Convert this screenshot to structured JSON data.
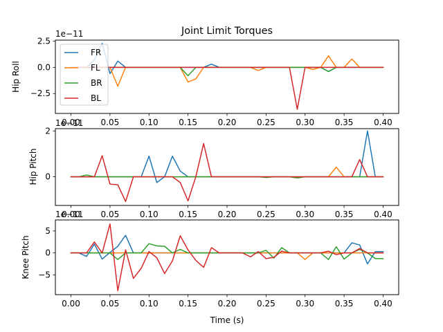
{
  "chart_data": {
    "type": "line",
    "title": "Joint Limit Torques",
    "xlabel": "Time (s)",
    "xlim": [
      -0.02,
      0.42
    ],
    "xticks": [
      "0.00",
      "0.05",
      "0.10",
      "0.15",
      "0.20",
      "0.25",
      "0.30",
      "0.35",
      "0.40"
    ],
    "legend": {
      "placement": "top-left",
      "entries": [
        "FR",
        "FL",
        "BR",
        "BL"
      ]
    },
    "colors": {
      "FR": "#1f77b4",
      "FL": "#ff7f0e",
      "BR": "#2ca02c",
      "BL": "#d62728"
    },
    "x": [
      0.0,
      0.01,
      0.02,
      0.03,
      0.04,
      0.05,
      0.06,
      0.07,
      0.08,
      0.09,
      0.1,
      0.11,
      0.12,
      0.13,
      0.14,
      0.15,
      0.16,
      0.17,
      0.18,
      0.19,
      0.2,
      0.21,
      0.22,
      0.23,
      0.24,
      0.25,
      0.26,
      0.27,
      0.28,
      0.29,
      0.3,
      0.31,
      0.32,
      0.33,
      0.34,
      0.35,
      0.36,
      0.37,
      0.38,
      0.39,
      0.4
    ],
    "subplots": [
      {
        "ylabel": "Hip Roll",
        "offset_text": "1e−11",
        "ylim": [
          -4.4,
          2.6
        ],
        "yticks": [
          {
            "value": 2.5,
            "label": "2.5"
          },
          {
            "value": 0.0,
            "label": "0.0"
          },
          {
            "value": -2.5,
            "label": "−2.5"
          }
        ],
        "series": [
          {
            "name": "FR",
            "values": [
              0,
              0,
              0,
              0.7,
              2.3,
              -0.6,
              0.6,
              0,
              0,
              0,
              0,
              0,
              0,
              0,
              0,
              0,
              0,
              0,
              0.3,
              0,
              0,
              0,
              0,
              0,
              0,
              0,
              0,
              0,
              0,
              0,
              0,
              0,
              0,
              -0.4,
              0,
              0,
              0,
              0,
              0,
              0,
              0
            ]
          },
          {
            "name": "FL",
            "values": [
              0,
              0,
              0,
              0,
              0,
              0,
              -1.8,
              0,
              0,
              0,
              0,
              0,
              0,
              0,
              0,
              -1.4,
              -1.1,
              0,
              0,
              0,
              0,
              0,
              0,
              0,
              -0.3,
              0,
              0,
              0,
              0,
              0,
              0,
              -0.2,
              0,
              1.1,
              0,
              0,
              0.8,
              0,
              0,
              0,
              0
            ]
          },
          {
            "name": "BR",
            "values": [
              0,
              0,
              0,
              0,
              0,
              0,
              0,
              0,
              0,
              0,
              0,
              0,
              0,
              0,
              0,
              -0.8,
              0,
              0,
              0,
              0,
              0,
              0,
              0,
              0,
              0,
              0,
              0,
              0,
              0,
              0,
              0,
              0,
              0,
              -0.4,
              0,
              0,
              0,
              0,
              0,
              0,
              0
            ]
          },
          {
            "name": "BL",
            "values": [
              0,
              0,
              0,
              0,
              0,
              0,
              0,
              0,
              0,
              0,
              0,
              0,
              0,
              0,
              0,
              0,
              0,
              0,
              0,
              0,
              0,
              0,
              0,
              0,
              0,
              0,
              0,
              0,
              0,
              -4.0,
              0,
              0,
              0,
              0,
              0,
              0,
              0,
              0,
              0,
              0,
              0
            ]
          }
        ]
      },
      {
        "ylabel": "Hip Pitch",
        "offset_text": "1e−11",
        "ylim": [
          -1.25,
          2.1
        ],
        "yticks": [
          {
            "value": 2,
            "label": "2"
          },
          {
            "value": 0,
            "label": "0"
          }
        ],
        "series": [
          {
            "name": "FR",
            "values": [
              0,
              0,
              0,
              0,
              0,
              0,
              0,
              0,
              0,
              0,
              0.9,
              -0.25,
              0,
              0.9,
              0.25,
              0,
              0,
              0,
              0,
              0,
              0,
              0,
              0,
              0,
              0,
              0,
              0,
              0,
              0,
              0,
              0,
              0,
              0,
              0,
              0,
              0,
              0,
              0,
              2.0,
              0,
              0
            ]
          },
          {
            "name": "FL",
            "values": [
              0,
              0,
              0,
              0,
              0,
              0,
              0,
              0,
              0,
              0,
              0,
              0,
              0,
              0,
              0,
              0,
              0,
              0,
              0,
              0,
              0,
              0,
              0,
              0,
              0,
              0,
              0,
              0,
              0,
              0,
              0,
              0,
              0,
              0,
              0.42,
              0,
              0,
              0,
              0,
              0,
              0
            ]
          },
          {
            "name": "BR",
            "values": [
              0,
              0,
              0.08,
              0,
              0,
              0,
              0,
              0,
              0,
              0,
              0,
              0,
              0,
              0,
              0,
              0,
              0,
              0,
              0,
              0,
              0,
              0,
              0,
              0,
              0,
              -0.03,
              0,
              0,
              0,
              -0.05,
              0,
              0,
              0,
              0,
              0,
              0,
              0,
              0,
              0,
              0,
              0
            ]
          },
          {
            "name": "BL",
            "values": [
              0,
              0,
              0,
              0,
              0.92,
              -0.32,
              -0.35,
              -1.08,
              0,
              0,
              0,
              0,
              0,
              0,
              -0.25,
              -1.05,
              0,
              1.45,
              0,
              0,
              0,
              0,
              0,
              0,
              0,
              0,
              0,
              0,
              0,
              0,
              0,
              0,
              0,
              0,
              0,
              0,
              0,
              0.75,
              0,
              0,
              0
            ]
          }
        ]
      },
      {
        "ylabel": "Knee Pitch",
        "offset_text": "1e−11",
        "ylim": [
          -9.5,
          7.5
        ],
        "yticks": [
          {
            "value": 5,
            "label": "5"
          },
          {
            "value": 0,
            "label": "0"
          },
          {
            "value": -5,
            "label": "−5"
          }
        ],
        "series": [
          {
            "name": "FR",
            "values": [
              0,
              0,
              -0.8,
              2.0,
              -1.4,
              0.1,
              1.5,
              4.0,
              0,
              0,
              0,
              0,
              0,
              0,
              0,
              0,
              0,
              0,
              0,
              0,
              0,
              0,
              0,
              0,
              0,
              0,
              0,
              0,
              0,
              0,
              0,
              0,
              0,
              0,
              0,
              0,
              2.3,
              1.8,
              -2.5,
              0.3,
              0.3
            ]
          },
          {
            "name": "FL",
            "values": [
              0,
              0,
              0,
              0,
              0,
              0,
              0,
              0,
              0,
              0,
              0,
              0,
              0,
              0,
              0,
              0,
              0,
              0,
              0,
              0,
              0,
              0,
              0,
              0,
              0,
              0,
              0,
              0,
              0,
              0,
              -1.5,
              0,
              0,
              0,
              0,
              0,
              0,
              0,
              0,
              0,
              0
            ]
          },
          {
            "name": "BR",
            "values": [
              0,
              0,
              0,
              0,
              0,
              0,
              -1.5,
              0,
              0,
              0,
              2.1,
              1.6,
              1.5,
              0,
              0.8,
              0,
              0,
              0,
              0,
              0,
              0,
              0,
              0,
              0,
              0,
              0.6,
              -1.2,
              1.2,
              0,
              0,
              0,
              0,
              0,
              -1.5,
              1.4,
              -1.4,
              0,
              0.8,
              0,
              -1.3,
              -1.3
            ]
          },
          {
            "name": "BL",
            "values": [
              0,
              0,
              0,
              2.5,
              0,
              6.6,
              -8.6,
              0.7,
              -5.8,
              -3.5,
              0.3,
              -1.1,
              -4.7,
              -1.8,
              3.9,
              0.7,
              -1.7,
              -3.3,
              1.2,
              0,
              0,
              0,
              0,
              -0.9,
              0.3,
              -1.3,
              -1.0,
              0.4,
              0,
              0,
              0,
              0,
              0,
              0.4,
              -0.4,
              0,
              0,
              1.0,
              0,
              0,
              0
            ]
          }
        ]
      }
    ]
  }
}
